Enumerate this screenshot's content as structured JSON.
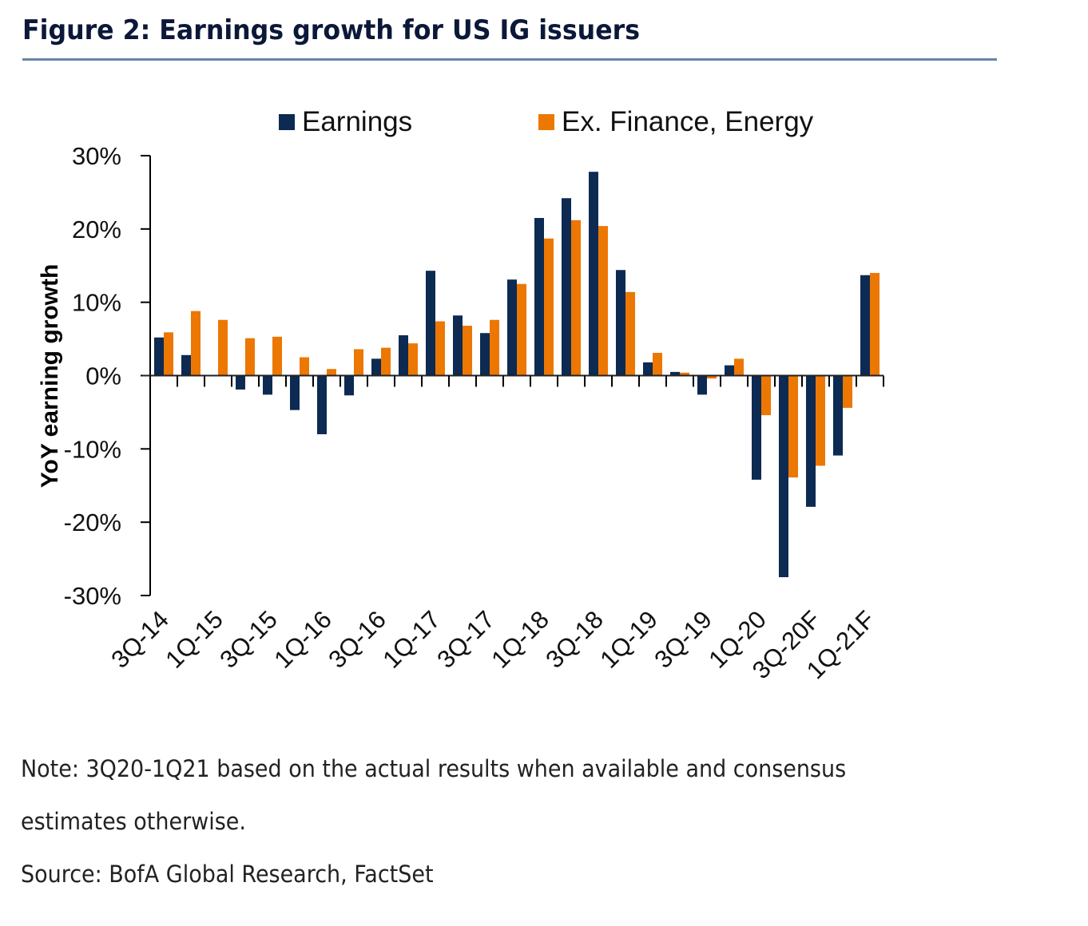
{
  "header": {
    "title": "Figure 2: Earnings growth for US IG issuers"
  },
  "footer": {
    "note_line1": "Note: 3Q20-1Q21 based on the actual results when available and consensus",
    "note_line2": "estimates otherwise.",
    "source": "Source: BofA Global Research, FactSet"
  },
  "chart_data": {
    "type": "bar",
    "title": "Figure 2: Earnings growth for US IG issuers",
    "xlabel": "",
    "ylabel": "YoY earning growth",
    "ylim": [
      -30,
      30
    ],
    "yticks": [
      30,
      20,
      10,
      0,
      -10,
      -20,
      -30
    ],
    "ytick_labels": [
      "30%",
      "20%",
      "10%",
      "0%",
      "-10%",
      "-20%",
      "-30%"
    ],
    "y_unit": "%",
    "grid": false,
    "legend_position": "top-center",
    "categories": [
      "3Q-14",
      "4Q-14",
      "1Q-15",
      "2Q-15",
      "3Q-15",
      "4Q-15",
      "1Q-16",
      "2Q-16",
      "3Q-16",
      "4Q-16",
      "1Q-17",
      "2Q-17",
      "3Q-17",
      "4Q-17",
      "1Q-18",
      "2Q-18",
      "3Q-18",
      "4Q-18",
      "1Q-19",
      "2Q-19",
      "3Q-19",
      "4Q-19",
      "1Q-20",
      "2Q-20",
      "3Q-20F",
      "4Q-20F",
      "1Q-21F"
    ],
    "visible_tick_labels": [
      "3Q-14",
      "1Q-15",
      "3Q-15",
      "1Q-16",
      "3Q-16",
      "1Q-17",
      "3Q-17",
      "1Q-18",
      "3Q-18",
      "1Q-19",
      "3Q-19",
      "1Q-20",
      "3Q-20F",
      "1Q-21F"
    ],
    "series": [
      {
        "name": "Earnings",
        "color": "#0c2a52",
        "values": [
          5.2,
          2.8,
          0.1,
          -1.9,
          -2.6,
          -4.7,
          -8.0,
          -2.7,
          2.3,
          5.5,
          14.3,
          8.2,
          5.8,
          13.1,
          21.5,
          24.2,
          27.8,
          14.4,
          1.8,
          0.5,
          -2.6,
          1.4,
          -14.2,
          -27.5,
          -17.9,
          -10.9,
          13.7
        ]
      },
      {
        "name": "Ex. Finance, Energy",
        "color": "#ec7703",
        "values": [
          5.9,
          8.8,
          7.6,
          5.1,
          5.3,
          2.5,
          0.9,
          3.6,
          3.8,
          4.4,
          7.4,
          6.8,
          7.6,
          12.5,
          18.7,
          21.2,
          20.4,
          11.4,
          3.1,
          0.4,
          -0.4,
          2.3,
          -5.4,
          -13.9,
          -12.3,
          -4.4,
          14.0
        ]
      }
    ]
  }
}
